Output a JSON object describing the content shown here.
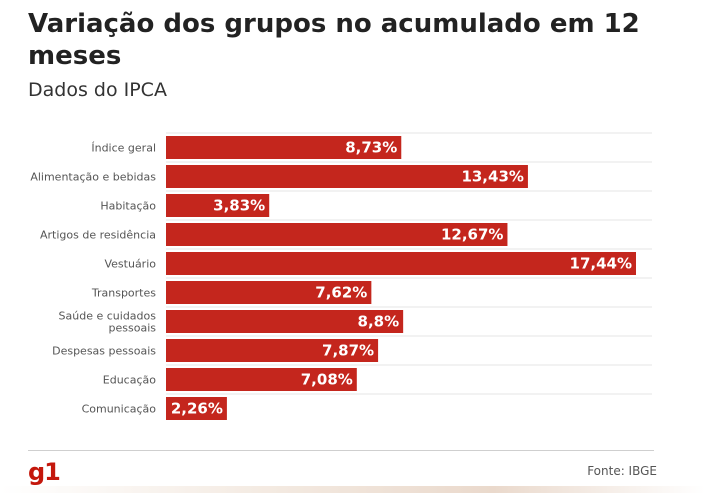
{
  "header": {
    "title": "Variação dos grupos no acumulado em 12 meses",
    "subtitle": "Dados do IPCA"
  },
  "footer": {
    "logo": "g1",
    "source": "Fonte: IBGE"
  },
  "colors": {
    "bar": "#c4261d",
    "accent": "#c4170c"
  },
  "chart_data": {
    "type": "bar",
    "orientation": "horizontal",
    "title": "Variação dos grupos no acumulado em 12 meses",
    "subtitle": "Dados do IPCA",
    "xlabel": "",
    "ylabel": "",
    "xlim": [
      0,
      17.44
    ],
    "grid": true,
    "categories": [
      [
        "Índice geral"
      ],
      [
        "Alimentação e bebidas"
      ],
      [
        "Habitação"
      ],
      [
        "Artigos de residência"
      ],
      [
        "Vestuário"
      ],
      [
        "Transportes"
      ],
      [
        "Saúde e cuidados",
        "pessoais"
      ],
      [
        "Despesas pessoais"
      ],
      [
        "Educação"
      ],
      [
        "Comunicação"
      ]
    ],
    "values": [
      8.73,
      13.43,
      3.83,
      12.67,
      17.44,
      7.62,
      8.8,
      7.87,
      7.08,
      2.26
    ],
    "labels": [
      "8,73%",
      "13,43%",
      "3,83%",
      "12,67%",
      "17,44%",
      "7,62%",
      "8,8%",
      "7,87%",
      "7,08%",
      "2,26%"
    ]
  }
}
